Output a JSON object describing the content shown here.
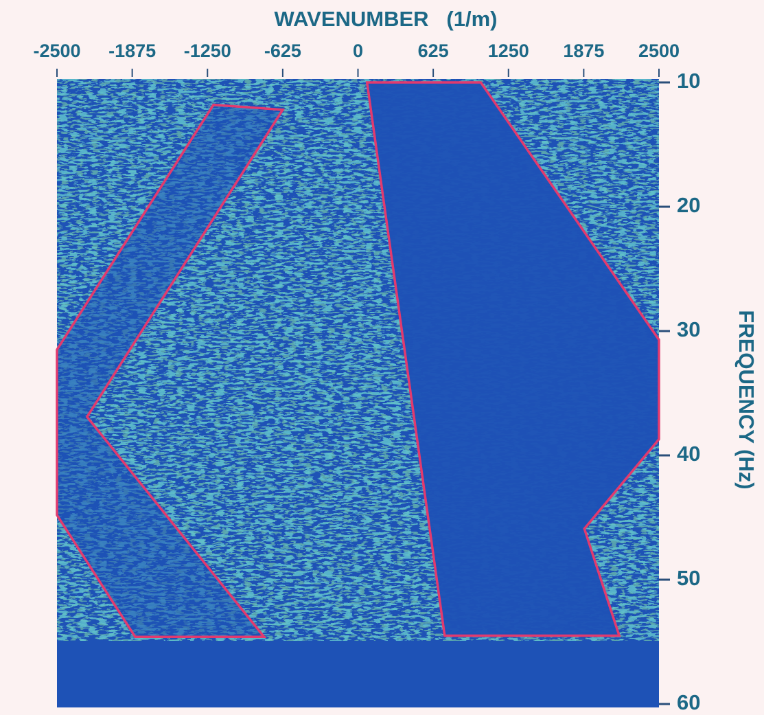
{
  "chart_data": {
    "type": "polygon",
    "x_label": "WAVENUMBER   (1/m)",
    "y_label": "FREQUENCY (Hz)",
    "xlim": [
      -2500,
      2500
    ],
    "xticks": [
      -2500,
      -1875,
      -1250,
      -625,
      0,
      625,
      1250,
      1875,
      2500
    ],
    "ylim": [
      10,
      60
    ],
    "yticks": [
      10,
      20,
      30,
      40,
      50,
      60
    ],
    "y_inverted": true,
    "polygons": [
      {
        "color": "#e23a6e",
        "x": [
          -1200,
          -625,
          -2250,
          -780,
          -1850,
          -2500,
          -2500
        ],
        "y": [
          11.8,
          12.2,
          36.9,
          54.6,
          54.6,
          44.8,
          31.5
        ]
      },
      {
        "color": "#e23a6e",
        "x": [
          75,
          1020,
          2500,
          2500,
          1880,
          2170,
          720
        ],
        "y": [
          10,
          10,
          30.7,
          38.7,
          45.9,
          54.5,
          54.5
        ]
      }
    ]
  }
}
